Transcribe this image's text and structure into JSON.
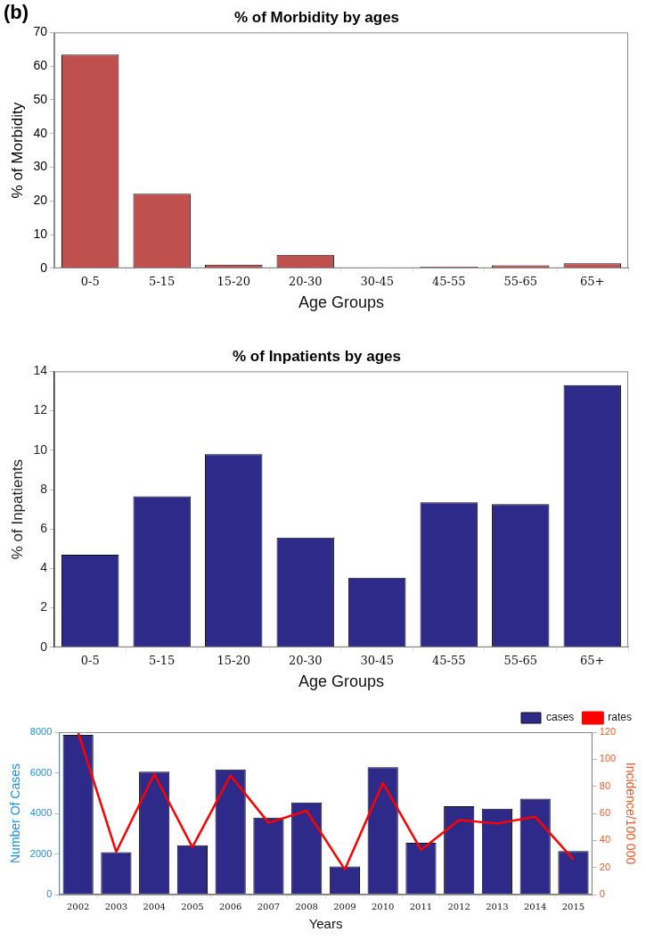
{
  "chart_data": [
    {
      "type": "bar",
      "title": "% of Morbidity by ages",
      "xlabel": "Age Groups",
      "ylabel": "% of Morbidity",
      "annotations": [
        "(b)"
      ],
      "categories": [
        "0-5",
        "5-15",
        "15-20",
        "20-30",
        "30-45",
        "45-55",
        "55-65",
        "65+"
      ],
      "values": [
        63.4,
        22.1,
        1.1,
        4,
        null,
        0.5,
        0.9,
        1.5
      ],
      "color": "#c0504d",
      "ylim": [
        0,
        70
      ],
      "yticks": [
        0,
        10,
        20,
        30,
        40,
        50,
        60,
        70
      ],
      "grid": false,
      "legend": false
    },
    {
      "type": "bar",
      "title": "% of Inpatients by ages",
      "xlabel": "Age Groups",
      "ylabel": "% of Inpatients",
      "categories": [
        "0-5",
        "5-15",
        "15-20",
        "20-30",
        "30-45",
        "45-55",
        "55-65",
        "65+"
      ],
      "values": [
        4.7,
        7.66,
        9.8,
        5.57,
        3.53,
        7.35,
        7.26,
        13.3
      ],
      "color": "#2e2a8a",
      "ylim": [
        0,
        14
      ],
      "yticks": [
        0,
        2,
        4,
        6,
        8,
        10,
        12,
        14
      ],
      "grid": false,
      "legend": false
    },
    {
      "type": "bar",
      "xlabel": "Years",
      "ylabel": "Number Of Cases",
      "y2label": "Incidence/100 000",
      "categories": [
        "2002",
        "2003",
        "2004",
        "2005",
        "2006",
        "2007",
        "2008",
        "2009",
        "2010",
        "2011",
        "2012",
        "2013",
        "2014",
        "2015"
      ],
      "series": [
        {
          "name": "cases",
          "type": "bar",
          "color": "#2e2a8a",
          "values": [
            7870,
            2090,
            6050,
            2430,
            6170,
            3790,
            4540,
            1380,
            6280,
            2550,
            4350,
            4230,
            4720,
            2140
          ]
        },
        {
          "name": "rates",
          "type": "line",
          "axis": "y2",
          "color": "#ff0000",
          "values": [
            120,
            31.5,
            89,
            35,
            88,
            53,
            62,
            18.5,
            82.5,
            33,
            55,
            52.5,
            57.5,
            26
          ]
        }
      ],
      "ylim": [
        0,
        8000
      ],
      "yticks": [
        0,
        2000,
        4000,
        6000,
        8000
      ],
      "y2lim": [
        0,
        120
      ],
      "y2ticks": [
        0,
        20,
        40,
        60,
        80,
        100,
        120
      ],
      "grid": false,
      "legend": "top right",
      "marker": "none"
    }
  ]
}
